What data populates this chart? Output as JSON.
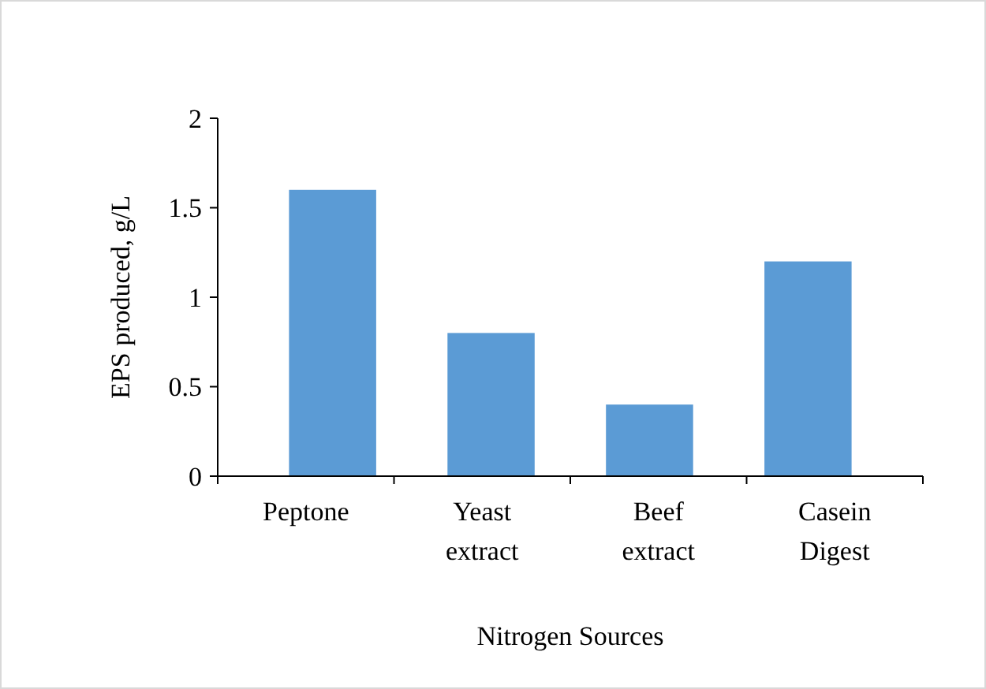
{
  "chart_data": {
    "type": "bar",
    "xlabel": "Nitrogen Sources",
    "ylabel": "EPS produced, g/L",
    "categories": [
      "Peptone",
      "Yeast extract",
      "Beef extract",
      "Casein Digest"
    ],
    "values": [
      1.6,
      0.8,
      0.4,
      1.2
    ],
    "color": "#5b9bd5",
    "ylim": [
      0,
      2
    ],
    "yticks": [
      0,
      0.5,
      1,
      1.5,
      2
    ],
    "grid": false
  }
}
